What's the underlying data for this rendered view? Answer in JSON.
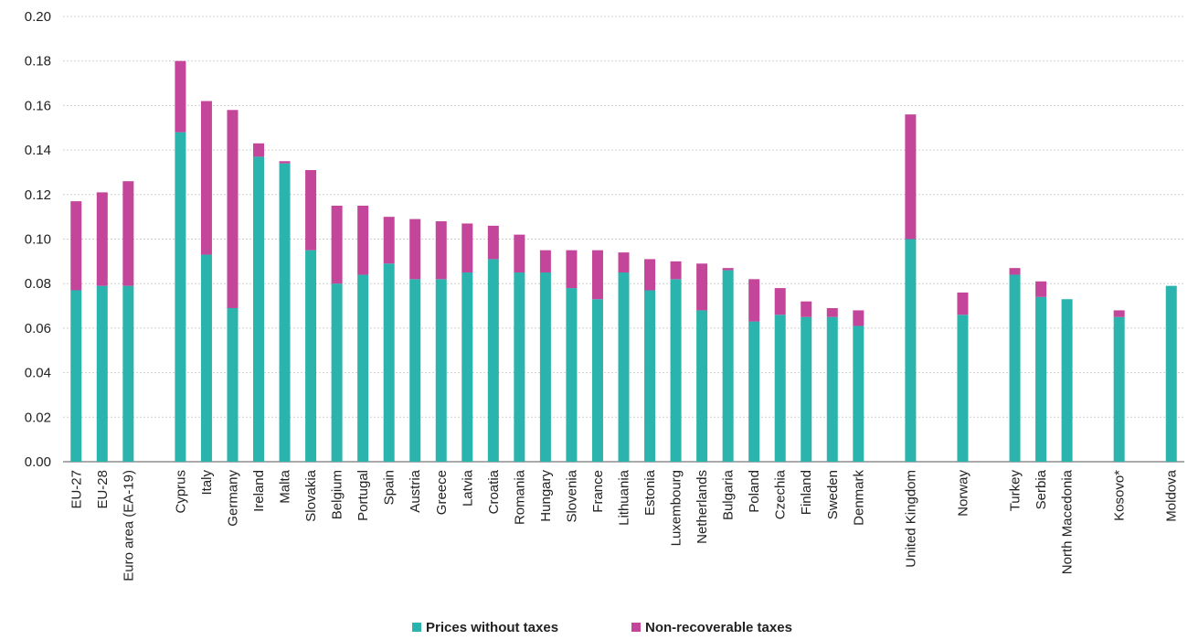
{
  "chart_data": {
    "type": "bar",
    "stacked": true,
    "categories": [
      "EU-27",
      "EU-28",
      "Euro area (EA-19)",
      "Cyprus",
      "Italy",
      "Germany",
      "Ireland",
      "Malta",
      "Slovakia",
      "Belgium",
      "Portugal",
      "Spain",
      "Austria",
      "Greece",
      "Latvia",
      "Croatia",
      "Romania",
      "Hungary",
      "Slovenia",
      "France",
      "Lithuania",
      "Estonia",
      "Luxembourg",
      "Netherlands",
      "Bulgaria",
      "Poland",
      "Czechia",
      "Finland",
      "Sweden",
      "Denmark",
      "United Kingdom",
      "Norway",
      "Turkey",
      "Serbia",
      "North Macedonia",
      "Kosovo*",
      "Moldova"
    ],
    "series": [
      {
        "name": "Prices without taxes",
        "color": "#2bb3ad",
        "values": [
          0.077,
          0.079,
          0.079,
          0.148,
          0.093,
          0.069,
          0.137,
          0.134,
          0.095,
          0.08,
          0.084,
          0.089,
          0.082,
          0.082,
          0.085,
          0.091,
          0.085,
          0.085,
          0.078,
          0.073,
          0.085,
          0.077,
          0.082,
          0.068,
          0.086,
          0.063,
          0.066,
          0.065,
          0.065,
          0.061,
          0.1,
          0.066,
          0.084,
          0.074,
          0.073,
          0.065,
          0.079
        ]
      },
      {
        "name": "Non-recoverable taxes",
        "color": "#c4469a",
        "values": [
          0.04,
          0.042,
          0.047,
          0.032,
          0.069,
          0.089,
          0.006,
          0.001,
          0.036,
          0.035,
          0.031,
          0.021,
          0.027,
          0.026,
          0.022,
          0.015,
          0.017,
          0.01,
          0.017,
          0.022,
          0.009,
          0.014,
          0.008,
          0.021,
          0.001,
          0.019,
          0.012,
          0.007,
          0.004,
          0.007,
          0.056,
          0.01,
          0.003,
          0.007,
          0.0,
          0.003,
          0.0
        ]
      }
    ],
    "groups": [
      [
        0,
        1,
        2
      ],
      [
        3,
        4,
        5,
        6,
        7,
        8,
        9,
        10,
        11,
        12,
        13,
        14,
        15,
        16,
        17,
        18,
        19,
        20,
        21,
        22,
        23,
        24,
        25,
        26,
        27,
        28,
        29
      ],
      [
        30
      ],
      [
        31
      ],
      [
        32,
        33,
        34
      ],
      [
        35
      ],
      [
        36
      ]
    ],
    "ylim": [
      0,
      0.2
    ],
    "yticks": [
      "0.00",
      "0.02",
      "0.04",
      "0.06",
      "0.08",
      "0.10",
      "0.12",
      "0.14",
      "0.16",
      "0.18",
      "0.20"
    ],
    "grid": true,
    "legend": {
      "position": "bottom-center",
      "labels": [
        "Prices without taxes",
        "Non-recoverable taxes"
      ]
    }
  }
}
